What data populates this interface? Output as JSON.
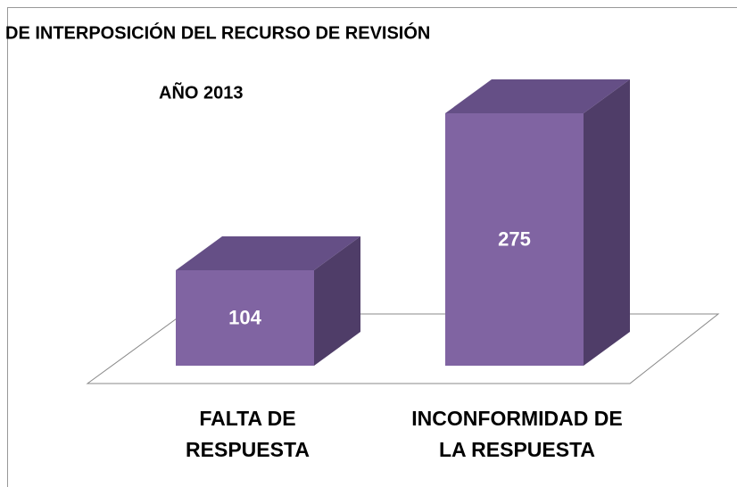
{
  "chart_data": {
    "type": "bar3d",
    "title": "DE INTERPOSICIÓN DEL RECURSO DE REVISIÓN",
    "subtitle": "AÑO 2013",
    "categories": [
      "FALTA DE RESPUESTA",
      "INCONFORMIDAD DE LA RESPUESTA"
    ],
    "values": [
      104,
      275
    ],
    "color": "#8064a2"
  }
}
